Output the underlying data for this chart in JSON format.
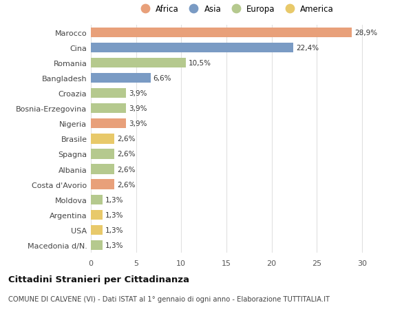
{
  "categories": [
    "Macedonia d/N.",
    "USA",
    "Argentina",
    "Moldova",
    "Costa d'Avorio",
    "Albania",
    "Spagna",
    "Brasile",
    "Nigeria",
    "Bosnia-Erzegovina",
    "Croazia",
    "Bangladesh",
    "Romania",
    "Cina",
    "Marocco"
  ],
  "values": [
    1.3,
    1.3,
    1.3,
    1.3,
    2.6,
    2.6,
    2.6,
    2.6,
    3.9,
    3.9,
    3.9,
    6.6,
    10.5,
    22.4,
    28.9
  ],
  "labels": [
    "1,3%",
    "1,3%",
    "1,3%",
    "1,3%",
    "2,6%",
    "2,6%",
    "2,6%",
    "2,6%",
    "3,9%",
    "3,9%",
    "3,9%",
    "6,6%",
    "10,5%",
    "22,4%",
    "28,9%"
  ],
  "colors": [
    "#b5c98e",
    "#e8c96a",
    "#e8c96a",
    "#b5c98e",
    "#e8a07a",
    "#b5c98e",
    "#b5c98e",
    "#e8c96a",
    "#e8a07a",
    "#b5c98e",
    "#b5c98e",
    "#7a9bc4",
    "#b5c98e",
    "#7a9bc4",
    "#e8a07a"
  ],
  "legend_labels": [
    "Africa",
    "Asia",
    "Europa",
    "America"
  ],
  "legend_colors": [
    "#e8a07a",
    "#7a9bc4",
    "#b5c98e",
    "#e8c96a"
  ],
  "title": "Cittadini Stranieri per Cittadinanza",
  "subtitle": "COMUNE DI CALVENE (VI) - Dati ISTAT al 1° gennaio di ogni anno - Elaborazione TUTTITALIA.IT",
  "xlim": [
    0,
    32
  ],
  "xticks": [
    0,
    5,
    10,
    15,
    20,
    25,
    30
  ],
  "background_color": "#ffffff",
  "grid_color": "#e0e0e0",
  "bar_height": 0.65
}
